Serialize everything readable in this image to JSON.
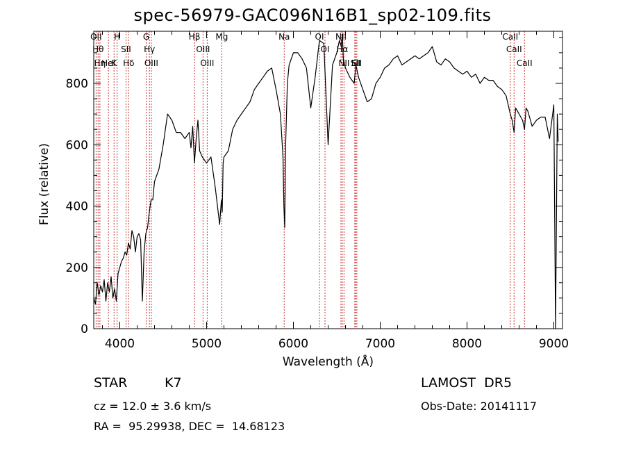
{
  "chart_data": {
    "type": "line",
    "title": "spec-56979-GAC096N16B1_sp02-109.fits",
    "xlabel": "Wavelength (Å)",
    "ylabel": "Flux (relative)",
    "xlim": [
      3700,
      9100
    ],
    "ylim": [
      0,
      970
    ],
    "x_ticks": [
      4000,
      5000,
      6000,
      7000,
      8000,
      9000
    ],
    "y_ticks": [
      0,
      200,
      400,
      600,
      800
    ],
    "series": [
      {
        "x": [
          3700,
          3720,
          3740,
          3760,
          3780,
          3800,
          3820,
          3840,
          3860,
          3880,
          3900,
          3920,
          3940,
          3960,
          3980,
          4000,
          4020,
          4040,
          4060,
          4080,
          4100,
          4120,
          4140,
          4160,
          4180,
          4200,
          4220,
          4240,
          4260,
          4280,
          4300,
          4320,
          4340,
          4360,
          4380,
          4400,
          4450,
          4500,
          4550,
          4600,
          4650,
          4700,
          4750,
          4800,
          4820,
          4840,
          4860,
          4880,
          4900,
          4920,
          4950,
          5000,
          5050,
          5100,
          5150,
          5170,
          5180,
          5190,
          5200,
          5250,
          5300,
          5350,
          5400,
          5450,
          5500,
          5550,
          5600,
          5650,
          5700,
          5750,
          5800,
          5850,
          5880,
          5890,
          5900,
          5910,
          5930,
          5950,
          6000,
          6050,
          6100,
          6150,
          6200,
          6250,
          6300,
          6350,
          6400,
          6450,
          6500,
          6530,
          6550,
          6563,
          6575,
          6600,
          6650,
          6700,
          6720,
          6750,
          6800,
          6850,
          6900,
          6950,
          7000,
          7050,
          7100,
          7150,
          7200,
          7250,
          7300,
          7350,
          7400,
          7450,
          7500,
          7550,
          7600,
          7650,
          7700,
          7750,
          7800,
          7850,
          7900,
          7950,
          8000,
          8050,
          8100,
          8150,
          8200,
          8250,
          8300,
          8350,
          8400,
          8450,
          8498,
          8520,
          8542,
          8560,
          8600,
          8640,
          8662,
          8680,
          8700,
          8750,
          8800,
          8850,
          8900,
          8950,
          9000,
          9020,
          9040,
          9050
        ],
        "y": [
          100,
          80,
          150,
          110,
          140,
          120,
          160,
          90,
          150,
          120,
          170,
          100,
          130,
          90,
          180,
          200,
          220,
          230,
          250,
          240,
          280,
          260,
          320,
          300,
          250,
          300,
          310,
          290,
          90,
          250,
          310,
          330,
          380,
          420,
          420,
          480,
          520,
          600,
          700,
          680,
          640,
          640,
          620,
          640,
          590,
          660,
          540,
          620,
          680,
          580,
          560,
          540,
          560,
          460,
          340,
          420,
          380,
          540,
          560,
          580,
          650,
          680,
          700,
          720,
          740,
          780,
          800,
          820,
          840,
          850,
          780,
          700,
          560,
          400,
          330,
          600,
          800,
          860,
          900,
          900,
          880,
          850,
          720,
          820,
          940,
          930,
          600,
          860,
          900,
          940,
          920,
          960,
          880,
          850,
          820,
          800,
          860,
          820,
          780,
          740,
          750,
          800,
          820,
          850,
          860,
          880,
          890,
          860,
          870,
          880,
          890,
          880,
          890,
          900,
          920,
          870,
          860,
          880,
          870,
          850,
          840,
          830,
          840,
          820,
          830,
          800,
          820,
          810,
          810,
          790,
          780,
          760,
          700,
          680,
          640,
          720,
          700,
          680,
          650,
          720,
          710,
          660,
          680,
          690,
          690,
          620,
          730,
          0,
          700,
          610
        ]
      }
    ],
    "line_labels": [
      {
        "wavelength": 3727,
        "text": "OII"
      },
      {
        "wavelength": 3750,
        "text": "Hθ"
      },
      {
        "wavelength": 3771,
        "text": "Hη"
      },
      {
        "wavelength": 3869,
        "text": "HeI"
      },
      {
        "wavelength": 3934,
        "text": "K"
      },
      {
        "wavelength": 3969,
        "text": "H"
      },
      {
        "wavelength": 4072,
        "text": "SII"
      },
      {
        "wavelength": 4102,
        "text": "Hδ"
      },
      {
        "wavelength": 4304,
        "text": "G"
      },
      {
        "wavelength": 4341,
        "text": "Hγ"
      },
      {
        "wavelength": 4363,
        "text": "OIII"
      },
      {
        "wavelength": 4861,
        "text": "Hβ"
      },
      {
        "wavelength": 4959,
        "text": "OIII"
      },
      {
        "wavelength": 5007,
        "text": "OIII"
      },
      {
        "wavelength": 5175,
        "text": "Mg"
      },
      {
        "wavelength": 5894,
        "text": "Na"
      },
      {
        "wavelength": 6300,
        "text": "OI"
      },
      {
        "wavelength": 6364,
        "text": "OI"
      },
      {
        "wavelength": 6548,
        "text": "NII"
      },
      {
        "wavelength": 6563,
        "text": "Hα"
      },
      {
        "wavelength": 6583,
        "text": "NII"
      },
      {
        "wavelength": 6707,
        "text": "Li"
      },
      {
        "wavelength": 6717,
        "text": "SII"
      },
      {
        "wavelength": 6731,
        "text": "SII"
      },
      {
        "wavelength": 8498,
        "text": "CaII"
      },
      {
        "wavelength": 8542,
        "text": "CaII"
      },
      {
        "wavelength": 8662,
        "text": "CaII"
      }
    ],
    "colors": {
      "spectrum": "#000000",
      "line_markers": "#cc3333"
    }
  },
  "info": {
    "class": "STAR",
    "subclass": "K7",
    "survey": "LAMOST  DR5",
    "cz": "cz = 12.0 ± 3.6 km/s",
    "obs_date": "Obs-Date: 20141117",
    "radec": "RA =  95.29938, DEC =  14.68123"
  }
}
